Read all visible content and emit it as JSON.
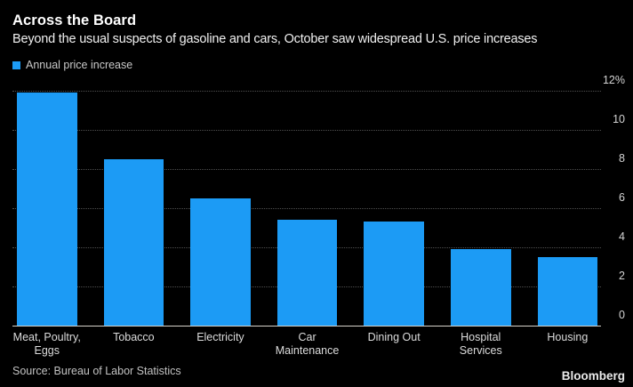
{
  "chart_data": {
    "type": "bar",
    "title": "Across the Board",
    "subtitle": "Beyond the usual suspects of gasoline and cars, October saw widespread U.S. price increases",
    "legend": [
      "Annual price increase"
    ],
    "categories": [
      "Meat, Poultry,\nEggs",
      "Tobacco",
      "Electricity",
      "Car\nMaintenance",
      "Dining Out",
      "Hospital\nServices",
      "Housing"
    ],
    "values": [
      11.9,
      8.5,
      6.5,
      5.4,
      5.3,
      3.9,
      3.5
    ],
    "unit": "%",
    "xlabel": "",
    "ylabel": "",
    "ylim": [
      0,
      12
    ],
    "yticks": [
      0,
      2,
      4,
      6,
      8,
      10,
      12
    ],
    "ytick_labels": [
      "0",
      "2",
      "4",
      "6",
      "8",
      "10",
      "12%"
    ],
    "grid": "horizontal-dotted",
    "axis_side": "right",
    "legend_position": "top-left",
    "bar_color": "#1C9BF5",
    "background_color": "#000000"
  },
  "footer": {
    "source": "Source: Bureau of Labor Statistics",
    "branding": "Bloomberg"
  }
}
